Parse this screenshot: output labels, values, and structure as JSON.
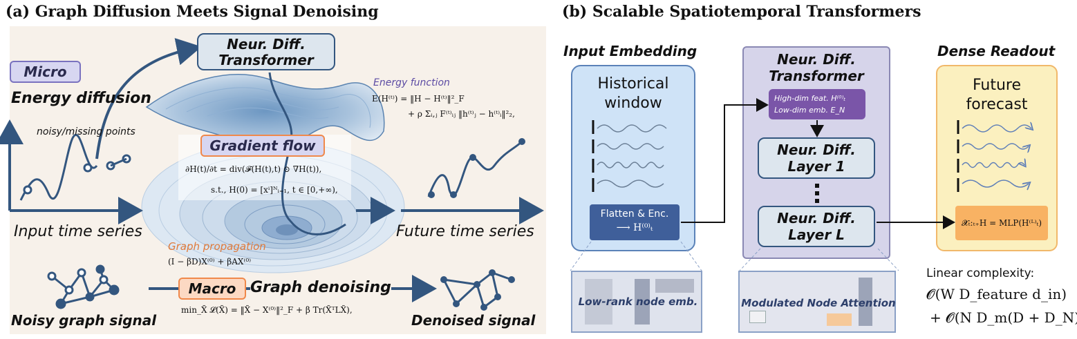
{
  "left": {
    "title": "(a) Graph Diffusion Meets Signal Denoising",
    "micro_tag": "Micro",
    "energy_diffusion": "Energy diffusion",
    "noisy_missing": "noisy/missing points",
    "input_ts": "Input time series",
    "ndt_line1": "Neur. Diff.",
    "ndt_line2": "Transformer",
    "energy_fn_title": "Energy function",
    "energy_eq1": "E(H⁽ᵗ⁾) = ‖H − H⁽ᵗ⁾‖²_F",
    "energy_eq2": "+ ρ Σᵢ,ⱼ F⁽ᵗ⁾ᵢⱼ ‖h⁽ᵗ⁾ⱼ − h⁽ᵗ⁾ᵢ‖²₂,",
    "gradient_flow": "Gradient flow",
    "grad_eq1": "∂H(t)/∂t = div(𝓕(H(t),t) ⊙ ∇H(t)),",
    "grad_eq2": "s.t., H(0) = [xⁱ]ᴺᵢ₌₁, t ∈ [0,+∞),",
    "future_ts": "Future time series",
    "graph_prop": "Graph propagation",
    "graph_prop_eq": "(I − βD)X⁽⁰⁾ + βAX⁽⁰⁾",
    "macro_tag": "Macro",
    "graph_denoising": "Graph denoising",
    "denoise_eq": "min_X̃ 𝓛(X̃) = ‖X̃ − X⁽⁰⁾‖²_F + β Tr(X̃ᵀLX̃),",
    "noisy_graph": "Noisy graph signal",
    "denoised": "Denoised signal"
  },
  "right": {
    "title": "(b) Scalable Spatiotemporal Transformers",
    "input_emb": "Input Embedding",
    "historical_1": "Historical",
    "historical_2": "window",
    "flatten_1": "Flatten & Enc.",
    "flatten_2": "⟶ H⁽⁰⁾ₜ",
    "lowrank": "Low-rank node emb.",
    "ndt_1": "Neur. Diff.",
    "ndt_2": "Transformer",
    "highdim_1": "High-dim feat. H⁽⁰⁾ₜ",
    "highdim_2": "Low-dim emb. E_N",
    "layer1_1": "Neur. Diff.",
    "layer1_2": "Layer 1",
    "layerL_1": "Neur. Diff.",
    "layerL_2": "Layer L",
    "modulated": "Modulated Node Attention",
    "dense": "Dense Readout",
    "future_1": "Future",
    "future_2": "forecast",
    "mlp_eq": "𝓧ₜ:ₜ₊H = MLP(H⁽ᴸ⁾ₜ)",
    "linear": "Linear complexity:",
    "complexity1": "𝓞(W D_feature d_in)",
    "complexity2": "+ 𝓞(N D_m(D + D_N))"
  },
  "colors": {
    "dark_blue": "#33567f",
    "micro_fill": "#d7d6f1",
    "macro_fill": "#fcd9c3",
    "input_panel": "#cfe3f7",
    "ndt_panel": "#d6d4ea",
    "readout_panel": "#fbf0bf",
    "purple": "#7a55a8",
    "orange": "#f8b263"
  }
}
